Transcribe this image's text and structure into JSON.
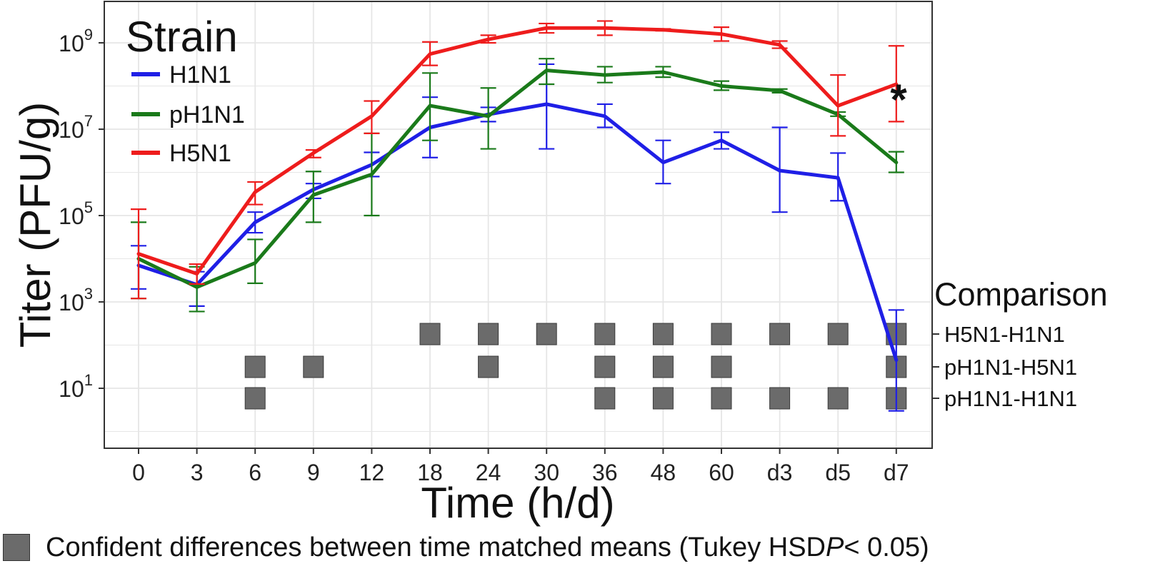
{
  "chart_data": {
    "type": "line",
    "xlabel": "Time (h/d)",
    "ylabel": "Titer (PFU/g)",
    "yscale": "log10",
    "ylim_exponent": [
      0,
      10
    ],
    "y_tick_labels": [
      {
        "base": "10",
        "exp": "1",
        "value": 10
      },
      {
        "base": "10",
        "exp": "3",
        "value": 1000
      },
      {
        "base": "10",
        "exp": "5",
        "value": 100000
      },
      {
        "base": "10",
        "exp": "7",
        "value": 10000000
      },
      {
        "base": "10",
        "exp": "9",
        "value": 1000000000
      }
    ],
    "categories": [
      "0",
      "3",
      "6",
      "9",
      "12",
      "18",
      "24",
      "30",
      "36",
      "48",
      "60",
      "d3",
      "d5",
      "d7"
    ],
    "grid": true,
    "legend": {
      "title": "Strain",
      "position": "top-left"
    },
    "series": [
      {
        "name": "H1N1",
        "color": "#1f1fe6",
        "values": [
          7000,
          2500,
          70000,
          400000,
          1500000,
          11000000,
          22000000,
          38000000,
          20000000,
          1700000,
          5500000,
          1100000,
          750000,
          45
        ],
        "err_low": [
          2000,
          800,
          40000,
          250000,
          800000,
          2200000,
          15000000,
          3500000,
          11000000,
          550000,
          3500000,
          120000,
          220000,
          3
        ],
        "err_high": [
          20000,
          5000,
          120000,
          550000,
          2900000,
          55000000,
          32000000,
          320000000,
          38000000,
          5500000,
          8500000,
          11000000,
          2800000,
          650
        ]
      },
      {
        "name": "pH1N1",
        "color": "#1a7a1a",
        "values": [
          10000,
          2200,
          8000,
          300000,
          900000,
          35000000,
          20000000,
          230000000,
          180000000,
          210000000,
          100000000,
          78000000,
          22000000,
          1700000
        ],
        "err_low": [
          1200,
          600,
          2700,
          70000,
          100000,
          5500000,
          3500000,
          110000000,
          120000000,
          160000000,
          80000000,
          70000000,
          20000000,
          1000000
        ],
        "err_high": [
          70000,
          6500,
          28000,
          1050000,
          8000000,
          200000000,
          90000000,
          430000000,
          280000000,
          280000000,
          130000000,
          85000000,
          25000000,
          3000000
        ]
      },
      {
        "name": "H5N1",
        "color": "#ee1c1c",
        "values": [
          13000,
          4500,
          350000,
          2800000,
          20000000,
          550000000,
          1200000000,
          2200000000,
          2200000000,
          2000000000,
          1600000000,
          900000000,
          35000000,
          110000000
        ],
        "err_low": [
          1200,
          2600,
          180000,
          2200000,
          8000000,
          300000000,
          1000000000,
          1700000000,
          1500000000,
          1900000000,
          1100000000,
          750000000,
          7000000,
          15000000
        ],
        "err_high": [
          140000,
          7500,
          600000,
          3300000,
          45000000,
          1050000000,
          1500000000,
          2800000000,
          3200000000,
          2100000000,
          2300000000,
          1100000000,
          180000000,
          850000000
        ]
      }
    ],
    "annotation": "*",
    "comparison": {
      "title": "Comparison",
      "rows": [
        {
          "label": "H5N1-H1N1",
          "marked": [
            "18",
            "24",
            "30",
            "36",
            "48",
            "60",
            "d3",
            "d5",
            "d7"
          ]
        },
        {
          "label": "pH1N1-H5N1",
          "marked": [
            "6",
            "9",
            "24",
            "36",
            "48",
            "60",
            "d7"
          ]
        },
        {
          "label": "pH1N1-H1N1",
          "marked": [
            "6",
            "36",
            "48",
            "60",
            "d3",
            "d5",
            "d7"
          ]
        }
      ]
    },
    "footnote": {
      "text_before": "Confident differences between time matched means (Tukey HSD ",
      "italic": "P",
      "text_after": " < 0.05)"
    },
    "colors": {
      "grid": "#e6e6e6",
      "marker": "#6b6b6b"
    }
  }
}
